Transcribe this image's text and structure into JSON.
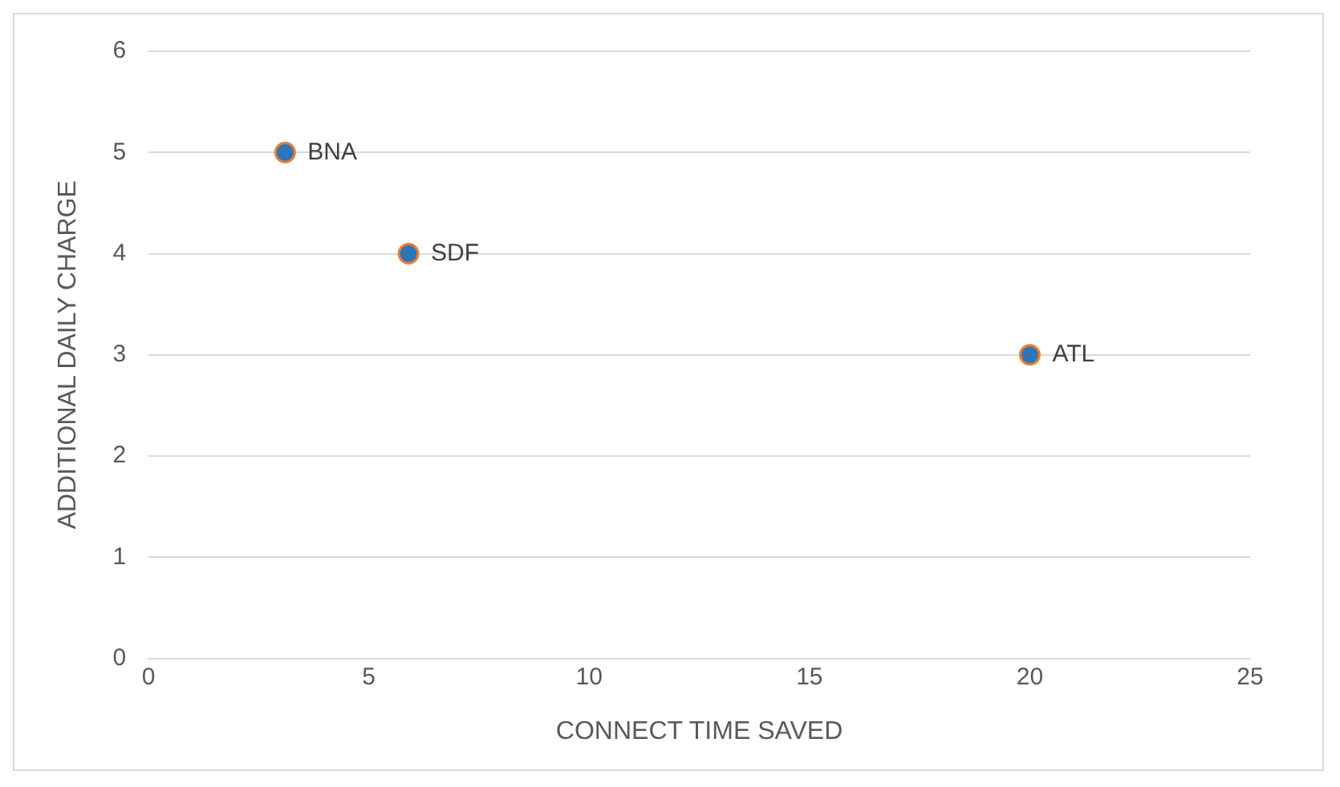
{
  "chart_data": {
    "type": "scatter",
    "xlabel": "CONNECT TIME SAVED",
    "ylabel": "ADDITIONAL DAILY CHARGE",
    "x": [
      3.1,
      5.9,
      20
    ],
    "series": [
      {
        "color": "#2e75b6",
        "values": [
          5,
          4,
          3
        ]
      }
    ],
    "marker": "circle",
    "grid": "y",
    "xlim": [
      0,
      25
    ],
    "xticks": [
      0,
      5,
      10,
      15,
      20,
      25
    ],
    "ylim": [
      0,
      6
    ],
    "yticks": [
      0,
      1,
      2,
      3,
      4,
      5,
      6
    ],
    "annotations": [
      {
        "text": "BNA",
        "x": 3.1,
        "y": 5
      },
      {
        "text": "SDF",
        "x": 5.9,
        "y": 4
      },
      {
        "text": "ATL",
        "x": 20,
        "y": 3
      }
    ]
  }
}
